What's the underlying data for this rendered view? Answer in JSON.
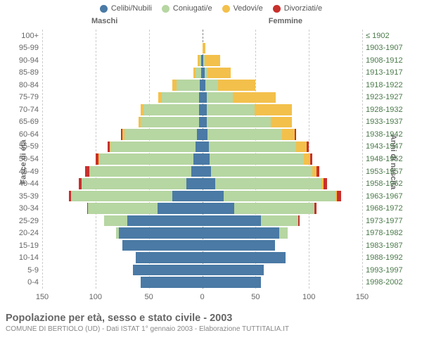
{
  "legend": [
    {
      "label": "Celibi/Nubili",
      "color": "#4a7aa5"
    },
    {
      "label": "Coniugati/e",
      "color": "#b6d6a2"
    },
    {
      "label": "Vedovi/e",
      "color": "#f3c04b"
    },
    {
      "label": "Divorziati/e",
      "color": "#c8302c"
    }
  ],
  "headers": {
    "male": "Maschi",
    "female": "Femmine"
  },
  "axis": {
    "left_title": "Fasce di età",
    "right_title": "Anni di nascita",
    "x_ticks": [
      -150,
      -100,
      -50,
      0,
      50,
      100,
      150
    ],
    "x_max": 150
  },
  "colors": {
    "single": "#4a7aa5",
    "married": "#b6d6a2",
    "widowed": "#f3c04b",
    "divorced": "#c8302c"
  },
  "rows": [
    {
      "age": "100+",
      "year": "≤ 1902",
      "m": [
        0,
        0,
        0,
        0
      ],
      "f": [
        0,
        0,
        0,
        0
      ]
    },
    {
      "age": "95-99",
      "year": "1903-1907",
      "m": [
        0,
        0,
        0,
        0
      ],
      "f": [
        0,
        0,
        3,
        0
      ]
    },
    {
      "age": "90-94",
      "year": "1908-1912",
      "m": [
        1,
        2,
        1,
        0
      ],
      "f": [
        1,
        1,
        15,
        0
      ]
    },
    {
      "age": "85-89",
      "year": "1913-1917",
      "m": [
        1,
        5,
        2,
        0
      ],
      "f": [
        2,
        3,
        22,
        0
      ]
    },
    {
      "age": "80-84",
      "year": "1918-1922",
      "m": [
        2,
        22,
        4,
        0
      ],
      "f": [
        3,
        12,
        35,
        0
      ]
    },
    {
      "age": "75-79",
      "year": "1923-1927",
      "m": [
        3,
        35,
        3,
        0
      ],
      "f": [
        4,
        25,
        40,
        0
      ]
    },
    {
      "age": "70-74",
      "year": "1928-1932",
      "m": [
        3,
        52,
        3,
        0
      ],
      "f": [
        4,
        45,
        35,
        0
      ]
    },
    {
      "age": "65-69",
      "year": "1933-1937",
      "m": [
        3,
        55,
        2,
        0
      ],
      "f": [
        4,
        60,
        20,
        0
      ]
    },
    {
      "age": "60-64",
      "year": "1938-1942",
      "m": [
        5,
        68,
        2,
        1
      ],
      "f": [
        5,
        70,
        12,
        1
      ]
    },
    {
      "age": "55-59",
      "year": "1943-1947",
      "m": [
        6,
        80,
        1,
        2
      ],
      "f": [
        6,
        82,
        10,
        2
      ]
    },
    {
      "age": "50-54",
      "year": "1948-1952",
      "m": [
        8,
        88,
        1,
        3
      ],
      "f": [
        7,
        88,
        6,
        2
      ]
    },
    {
      "age": "45-49",
      "year": "1953-1957",
      "m": [
        10,
        95,
        1,
        4
      ],
      "f": [
        8,
        95,
        4,
        3
      ]
    },
    {
      "age": "40-44",
      "year": "1958-1962",
      "m": [
        15,
        98,
        0,
        3
      ],
      "f": [
        12,
        100,
        2,
        3
      ]
    },
    {
      "age": "35-39",
      "year": "1963-1967",
      "m": [
        28,
        95,
        0,
        2
      ],
      "f": [
        20,
        105,
        1,
        4
      ]
    },
    {
      "age": "30-34",
      "year": "1968-1972",
      "m": [
        42,
        65,
        0,
        1
      ],
      "f": [
        30,
        75,
        0,
        2
      ]
    },
    {
      "age": "25-29",
      "year": "1973-1977",
      "m": [
        70,
        22,
        0,
        0
      ],
      "f": [
        55,
        35,
        0,
        1
      ]
    },
    {
      "age": "20-24",
      "year": "1978-1982",
      "m": [
        78,
        3,
        0,
        0
      ],
      "f": [
        72,
        8,
        0,
        0
      ]
    },
    {
      "age": "15-19",
      "year": "1983-1987",
      "m": [
        75,
        0,
        0,
        0
      ],
      "f": [
        68,
        0,
        0,
        0
      ]
    },
    {
      "age": "10-14",
      "year": "1988-1992",
      "m": [
        62,
        0,
        0,
        0
      ],
      "f": [
        78,
        0,
        0,
        0
      ]
    },
    {
      "age": "5-9",
      "year": "1993-1997",
      "m": [
        65,
        0,
        0,
        0
      ],
      "f": [
        58,
        0,
        0,
        0
      ]
    },
    {
      "age": "0-4",
      "year": "1998-2002",
      "m": [
        58,
        0,
        0,
        0
      ],
      "f": [
        55,
        0,
        0,
        0
      ]
    }
  ],
  "footer": {
    "title": "Popolazione per età, sesso e stato civile - 2003",
    "sub": "COMUNE DI BERTIOLO (UD) - Dati ISTAT 1° gennaio 2003 - Elaborazione TUTTITALIA.IT"
  }
}
